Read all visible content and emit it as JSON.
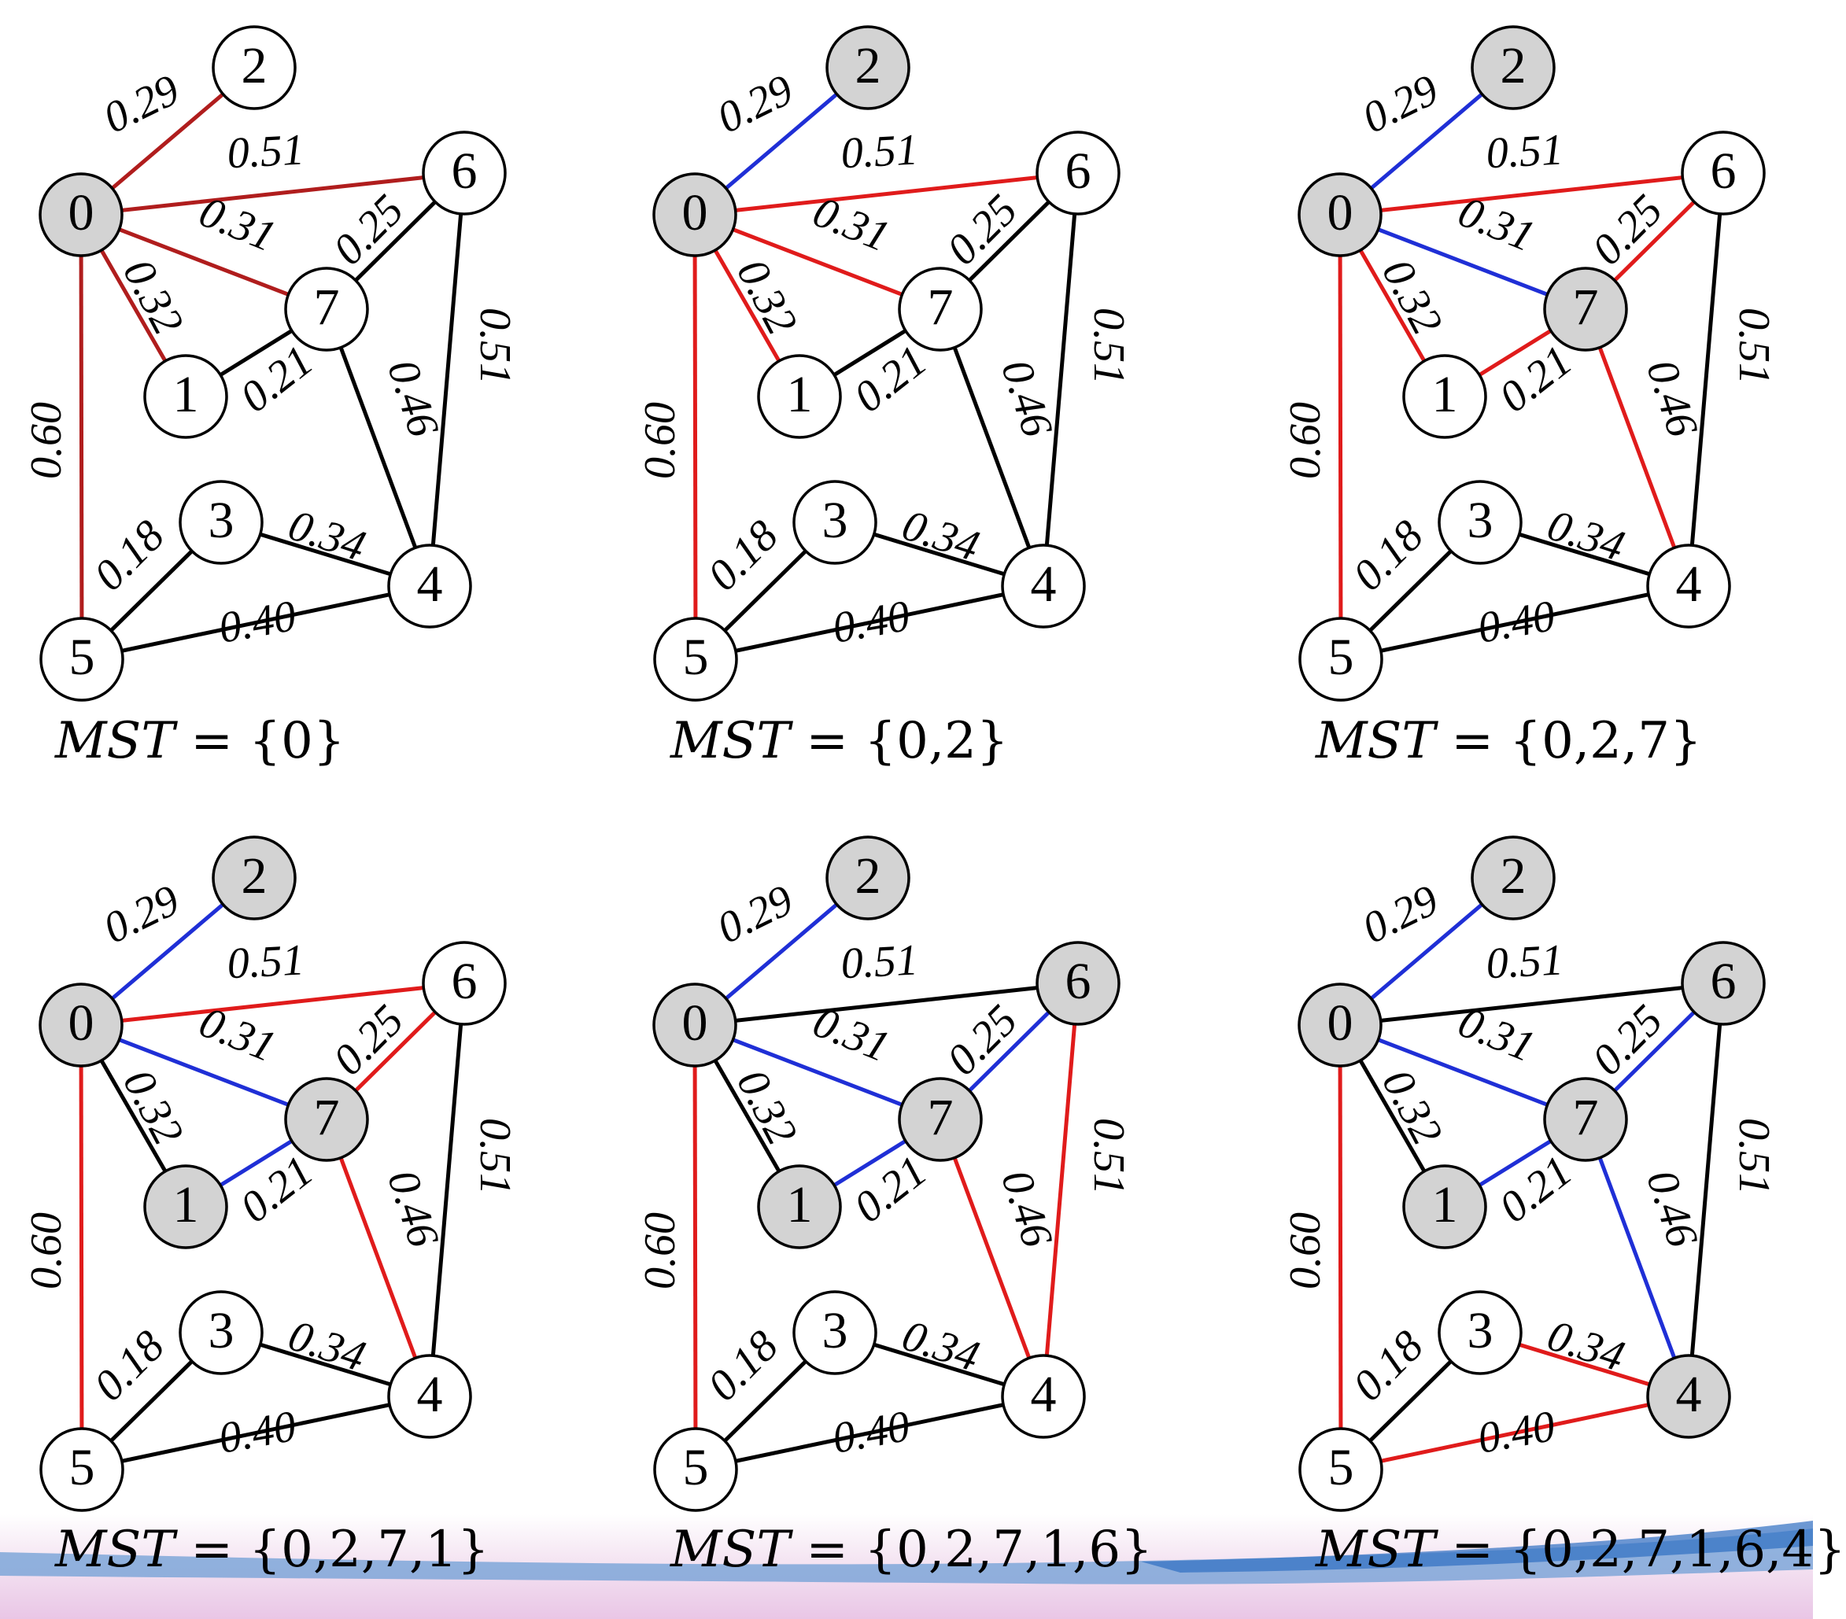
{
  "colors": {
    "mst_edge": "#1f2fd6",
    "candidate_edge": "#e01b1b",
    "candidate_edge_initial": "#b01d1d",
    "other_edge": "#000000",
    "visited_node": "#d3d3d3",
    "unvisited_node": "#ffffff"
  },
  "graph": {
    "nodes": [
      "0",
      "1",
      "2",
      "3",
      "4",
      "5",
      "6",
      "7"
    ],
    "edges": [
      {
        "id": "e02",
        "a": "0",
        "b": "2",
        "weight": "0.29"
      },
      {
        "id": "e06",
        "a": "0",
        "b": "6",
        "weight": "0.51"
      },
      {
        "id": "e07",
        "a": "0",
        "b": "7",
        "weight": "0.31"
      },
      {
        "id": "e01",
        "a": "0",
        "b": "1",
        "weight": "0.32"
      },
      {
        "id": "e05",
        "a": "0",
        "b": "5",
        "weight": "0.60"
      },
      {
        "id": "e76",
        "a": "7",
        "b": "6",
        "weight": "0.25"
      },
      {
        "id": "e17",
        "a": "1",
        "b": "7",
        "weight": "0.21"
      },
      {
        "id": "e74",
        "a": "7",
        "b": "4",
        "weight": "0.46"
      },
      {
        "id": "e64",
        "a": "6",
        "b": "4",
        "weight": "0.51"
      },
      {
        "id": "e53",
        "a": "5",
        "b": "3",
        "weight": "0.18"
      },
      {
        "id": "e34",
        "a": "3",
        "b": "4",
        "weight": "0.34"
      },
      {
        "id": "e54",
        "a": "5",
        "b": "4",
        "weight": "0.40"
      }
    ]
  },
  "panels": [
    {
      "caption_label": "MST",
      "caption_set": " = {0}",
      "visited": [
        "0"
      ],
      "edge_state": {
        "e02": "initial",
        "e06": "initial",
        "e07": "initial",
        "e01": "initial",
        "e05": "initial",
        "e76": "other",
        "e17": "other",
        "e74": "other",
        "e64": "other",
        "e53": "other",
        "e34": "other",
        "e54": "other"
      }
    },
    {
      "caption_label": "MST",
      "caption_set": " = {0,2}",
      "visited": [
        "0",
        "2"
      ],
      "edge_state": {
        "e02": "mst",
        "e06": "candidate",
        "e07": "candidate",
        "e01": "candidate",
        "e05": "candidate",
        "e76": "other",
        "e17": "other",
        "e74": "other",
        "e64": "other",
        "e53": "other",
        "e34": "other",
        "e54": "other"
      }
    },
    {
      "caption_label": "MST",
      "caption_set": " = {0,2,7}",
      "visited": [
        "0",
        "2",
        "7"
      ],
      "edge_state": {
        "e02": "mst",
        "e06": "candidate",
        "e07": "mst",
        "e01": "candidate",
        "e05": "candidate",
        "e76": "candidate",
        "e17": "candidate",
        "e74": "candidate",
        "e64": "other",
        "e53": "other",
        "e34": "other",
        "e54": "other"
      }
    },
    {
      "caption_label": "MST",
      "caption_set": " = {0,2,7,1}",
      "visited": [
        "0",
        "2",
        "7",
        "1"
      ],
      "edge_state": {
        "e02": "mst",
        "e06": "candidate",
        "e07": "mst",
        "e01": "other",
        "e05": "candidate",
        "e76": "candidate",
        "e17": "mst",
        "e74": "candidate",
        "e64": "other",
        "e53": "other",
        "e34": "other",
        "e54": "other"
      }
    },
    {
      "caption_label": "MST",
      "caption_set": " = {0,2,7,1,6}",
      "visited": [
        "0",
        "2",
        "7",
        "1",
        "6"
      ],
      "edge_state": {
        "e02": "mst",
        "e06": "other",
        "e07": "mst",
        "e01": "other",
        "e05": "candidate",
        "e76": "mst",
        "e17": "mst",
        "e74": "candidate",
        "e64": "candidate",
        "e53": "other",
        "e34": "other",
        "e54": "other"
      }
    },
    {
      "caption_label": "MST",
      "caption_set": " = {0,2,7,1,6,4}",
      "visited": [
        "0",
        "2",
        "7",
        "1",
        "6",
        "4"
      ],
      "edge_state": {
        "e02": "mst",
        "e06": "other",
        "e07": "mst",
        "e01": "other",
        "e05": "candidate",
        "e76": "mst",
        "e17": "mst",
        "e74": "mst",
        "e64": "other",
        "e53": "other",
        "e34": "candidate",
        "e54": "candidate"
      }
    }
  ]
}
